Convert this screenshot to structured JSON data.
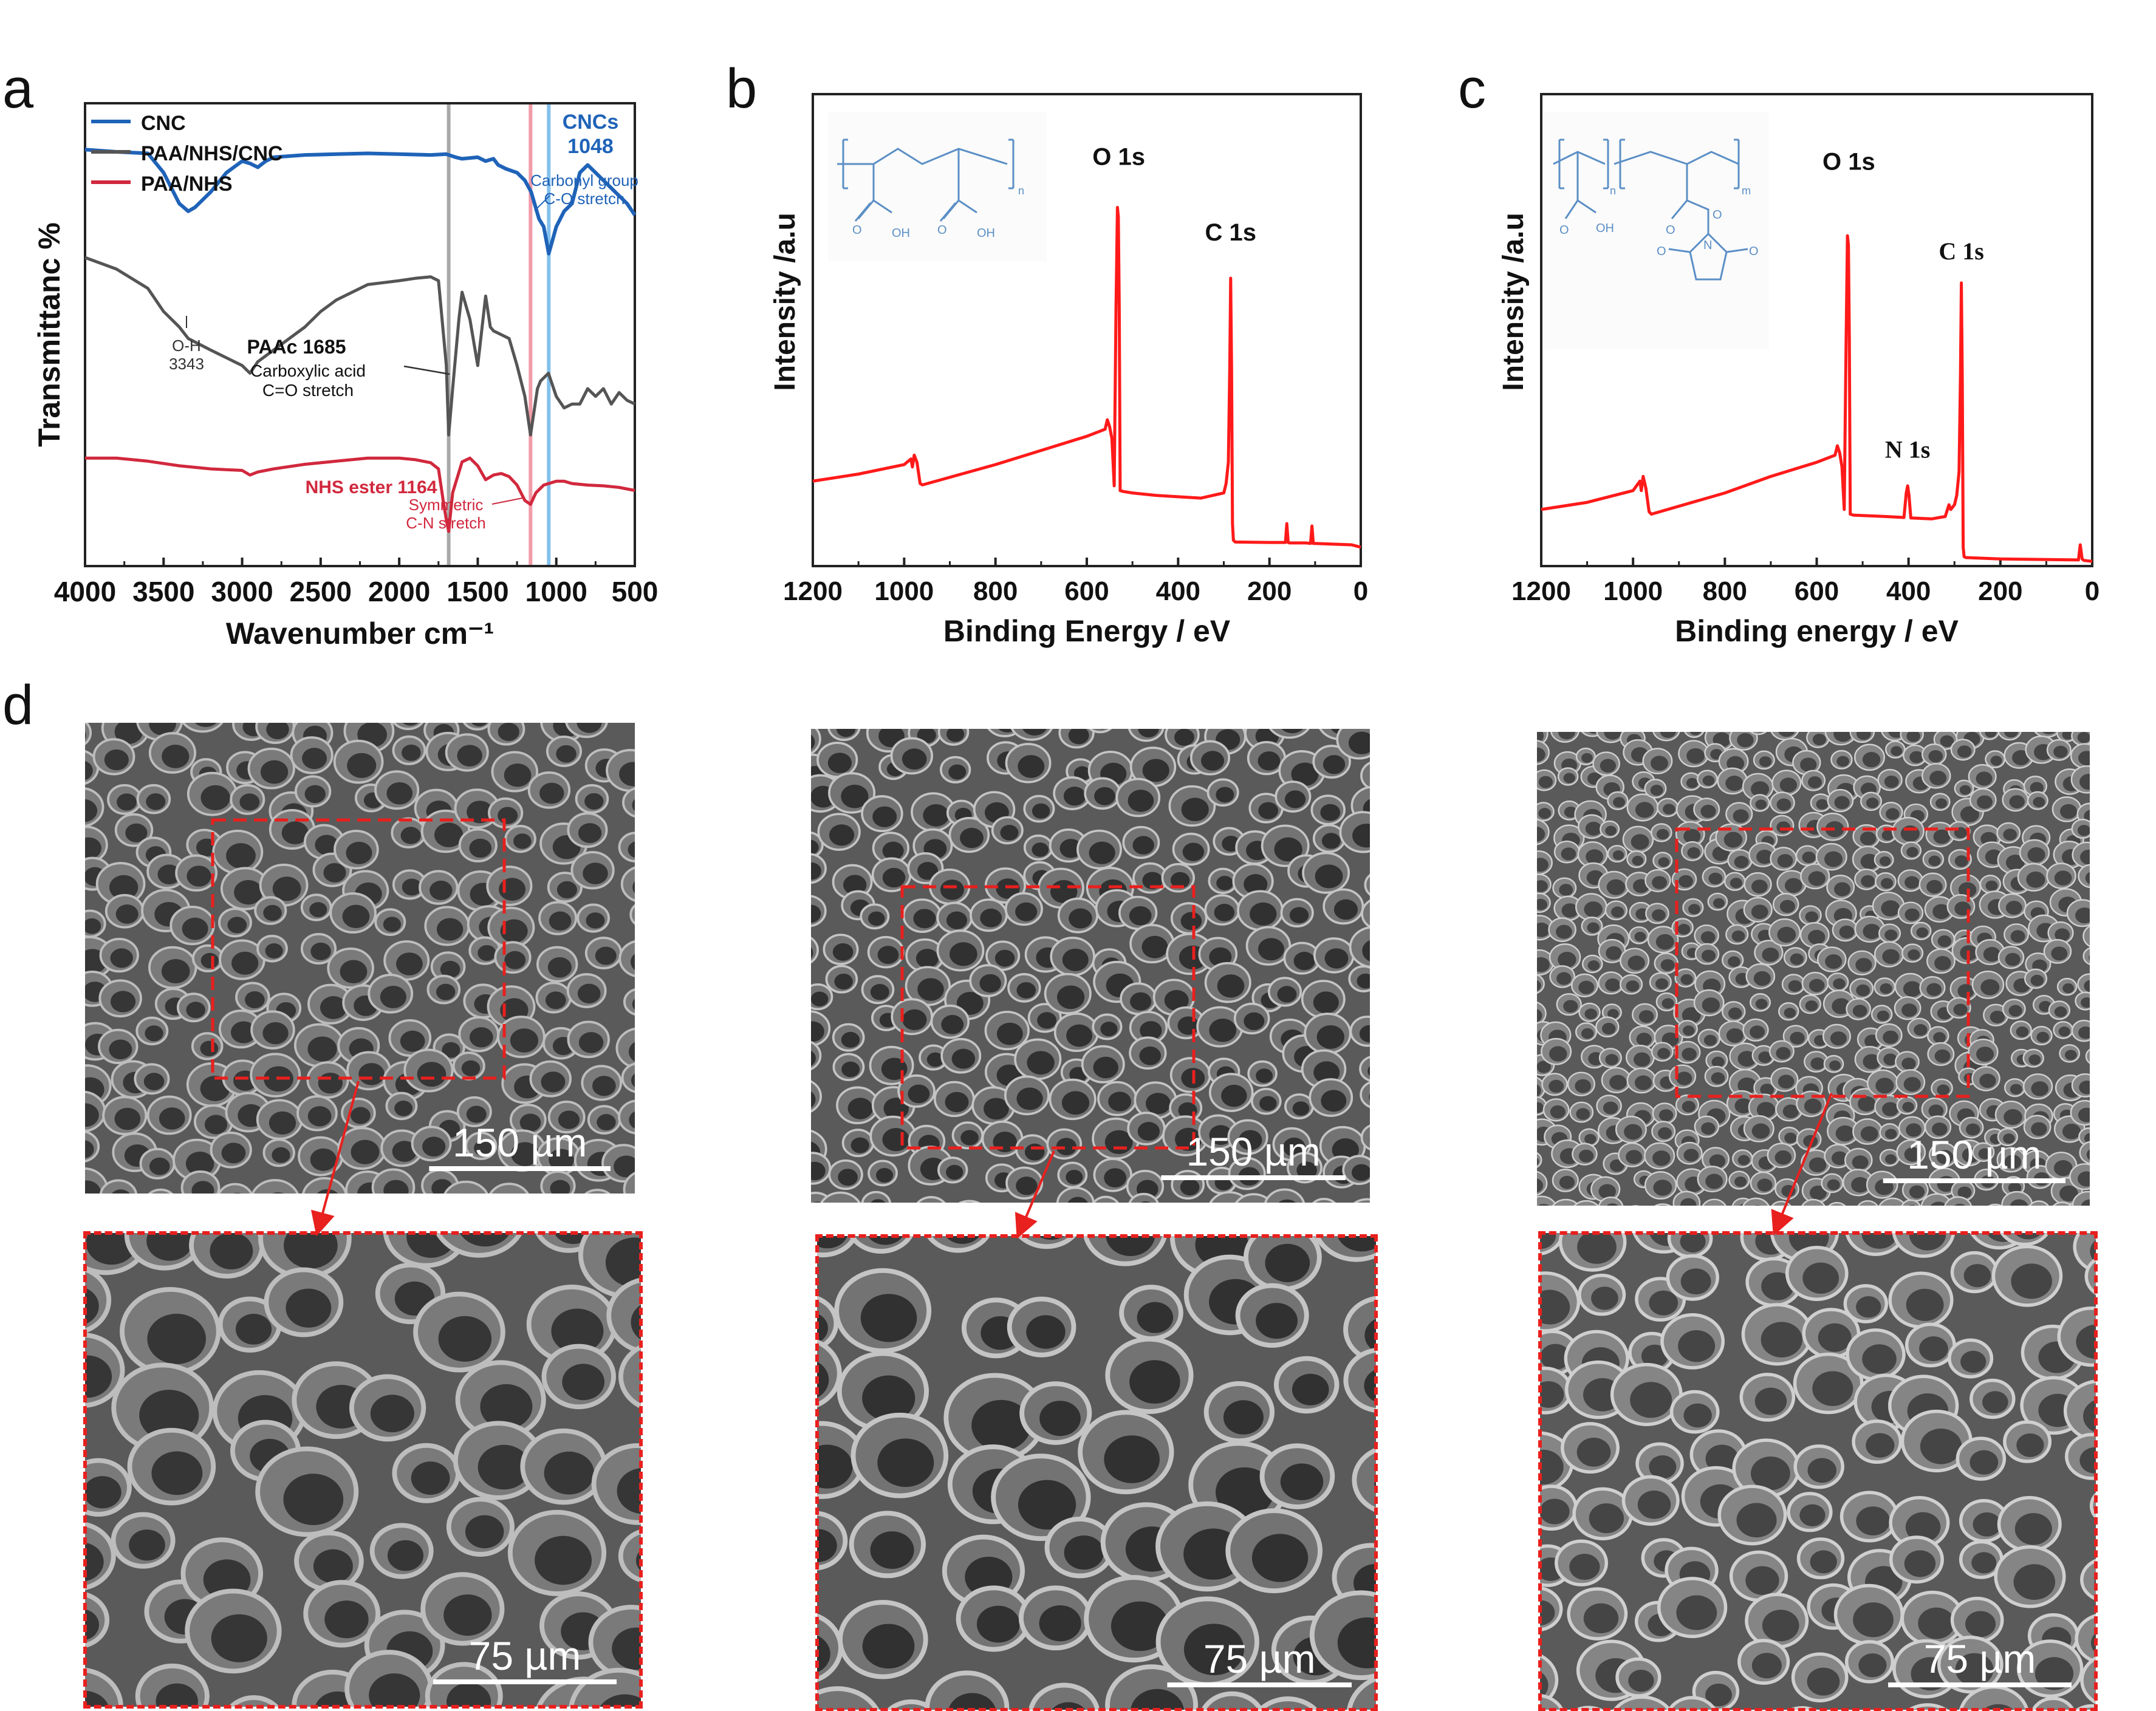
{
  "panels": {
    "a": "a",
    "b": "b",
    "c": "c",
    "d": "d"
  },
  "chart_data": [
    {
      "panel": "a",
      "type": "line",
      "xlabel": "Wavenumber cm⁻¹",
      "ylabel": "Transmittanc %",
      "xlim": [
        4000,
        500
      ],
      "x_ticks": [
        "4000",
        "3500",
        "3000",
        "2500",
        "2000",
        "1500",
        "1000",
        "500"
      ],
      "legend_position": "top-left",
      "series": [
        {
          "name": "CNC",
          "color": "#1f63b8",
          "x": [
            4000,
            3800,
            3600,
            3500,
            3450,
            3400,
            3343,
            3300,
            3200,
            3100,
            3000,
            2950,
            2900,
            2850,
            2800,
            2600,
            2400,
            2200,
            2000,
            1800,
            1700,
            1640,
            1600,
            1500,
            1450,
            1400,
            1370,
            1320,
            1250,
            1200,
            1160,
            1110,
            1080,
            1048,
            1000,
            950,
            900,
            850,
            800,
            750,
            700,
            650,
            600,
            550,
            500
          ],
          "y": [
            94,
            93.7,
            93.5,
            91,
            89,
            87,
            86,
            86.5,
            88.5,
            91,
            92.5,
            92.2,
            91.7,
            92.5,
            93,
            93.3,
            93.4,
            93.5,
            93.4,
            93.3,
            93.4,
            93,
            92.8,
            93,
            92.5,
            92.8,
            92,
            91.5,
            91,
            90,
            88.5,
            85,
            84,
            80.5,
            84,
            86,
            87,
            91,
            92,
            91,
            90,
            89,
            88,
            87,
            85.5
          ]
        },
        {
          "name": "PAA/NHS/CNC",
          "color": "#555555",
          "x": [
            4000,
            3800,
            3600,
            3500,
            3400,
            3343,
            3200,
            3000,
            2950,
            2900,
            2800,
            2600,
            2500,
            2400,
            2200,
            2000,
            1900,
            1800,
            1750,
            1700,
            1685,
            1660,
            1620,
            1600,
            1550,
            1500,
            1450,
            1420,
            1400,
            1350,
            1300,
            1250,
            1200,
            1164,
            1120,
            1100,
            1050,
            1000,
            950,
            900,
            850,
            800,
            750,
            700,
            650,
            600,
            550,
            500
          ],
          "y": [
            80,
            78.5,
            76,
            73,
            71,
            69.5,
            68,
            66,
            65,
            66.5,
            68,
            71,
            73,
            74.5,
            76.5,
            77,
            77.3,
            77.5,
            77,
            66,
            57,
            63,
            72,
            75.5,
            72,
            66,
            75,
            71,
            70.5,
            70,
            69.5,
            66,
            62,
            57,
            63,
            64,
            65,
            62,
            60.5,
            61,
            61,
            63,
            62,
            63,
            61,
            62.5,
            61.5,
            61
          ]
        },
        {
          "name": "PAA/NHS",
          "color": "#d1283d",
          "x": [
            4000,
            3800,
            3600,
            3400,
            3200,
            3000,
            2950,
            2900,
            2800,
            2600,
            2400,
            2200,
            2000,
            1900,
            1800,
            1750,
            1720,
            1700,
            1685,
            1660,
            1600,
            1550,
            1500,
            1450,
            1400,
            1350,
            1300,
            1250,
            1200,
            1164,
            1130,
            1080,
            1000,
            950,
            900,
            800,
            700,
            600,
            500
          ],
          "y": [
            54,
            54,
            53.6,
            53,
            52.6,
            52.4,
            51.8,
            52.2,
            52.6,
            53.2,
            53.6,
            54,
            54,
            53.8,
            53.4,
            52.6,
            48.5,
            46,
            44.5,
            49.5,
            53.5,
            54,
            53,
            51.2,
            51.8,
            52,
            51.6,
            50.5,
            48.5,
            48,
            49.5,
            50.5,
            51,
            51,
            50.7,
            50.5,
            50.4,
            50.2,
            49.8
          ]
        }
      ],
      "reference_lines": [
        {
          "x": 1685,
          "color": "#999999"
        },
        {
          "x": 1164,
          "color": "#f08a9a"
        },
        {
          "x": 1048,
          "color": "#6fb6ea"
        }
      ],
      "annotations": [
        {
          "lines": [
            "CNCs",
            "1048"
          ],
          "bold": true,
          "color": "#1f63b8"
        },
        {
          "lines": [
            "Carbonyl group",
            "C-O stretch"
          ],
          "color": "#1f63b8"
        },
        {
          "lines": [
            "O-H",
            "3343"
          ],
          "color": "#333333"
        },
        {
          "lines": [
            "PAAc 1685"
          ],
          "bold": true,
          "color": "#111111"
        },
        {
          "lines": [
            "Carboxylic acid",
            "C=O stretch"
          ],
          "color": "#111111"
        },
        {
          "lines": [
            "NHS ester 1164"
          ],
          "bold": true,
          "color": "#d1283d"
        },
        {
          "lines": [
            "Symmetric",
            "C-N stretch"
          ],
          "color": "#d1283d"
        }
      ]
    },
    {
      "panel": "b",
      "type": "line",
      "xlabel": "Binding Energy / eV",
      "ylabel": "Intensity /a.u",
      "xlim": [
        1200,
        0
      ],
      "ylim": [
        0,
        100
      ],
      "x_ticks": [
        "1200",
        "1000",
        "800",
        "600",
        "400",
        "200",
        "0"
      ],
      "series": [
        {
          "name": "",
          "color": "#ff1a1a",
          "x": [
            1200,
            1100,
            1000,
            985,
            982,
            978,
            972,
            965,
            960,
            800,
            700,
            600,
            560,
            555,
            550,
            545,
            540,
            536,
            533,
            531,
            529,
            527,
            520,
            500,
            450,
            350,
            300,
            295,
            290,
            287,
            285,
            283,
            281,
            279,
            275,
            200,
            165,
            162,
            159,
            156,
            120,
            110,
            107,
            104,
            100,
            20,
            0
          ],
          "y": [
            18,
            19.5,
            21.5,
            22.7,
            21,
            23.5,
            22,
            17.5,
            17.2,
            21.5,
            24.5,
            27.5,
            29,
            31,
            29.5,
            27,
            17,
            55,
            76,
            74,
            55,
            16,
            15.8,
            15.5,
            15,
            14.4,
            15.5,
            17.5,
            22,
            42,
            61,
            42,
            9,
            5.5,
            5.1,
            5,
            5,
            9,
            5,
            4.9,
            4.9,
            4.8,
            8.5,
            4.8,
            4.8,
            4.5,
            4
          ]
        }
      ],
      "annotations": [
        {
          "text": "O 1s"
        },
        {
          "text": "C 1s"
        }
      ],
      "inset": "poly(acrylic acid) repeat unit structure"
    },
    {
      "panel": "c",
      "type": "line",
      "xlabel": "Binding energy / eV",
      "ylabel": "Intensity /a.u",
      "xlim": [
        1200,
        0
      ],
      "ylim": [
        0,
        100
      ],
      "x_ticks": [
        "1200",
        "1000",
        "800",
        "600",
        "400",
        "200",
        "0"
      ],
      "series": [
        {
          "name": "",
          "color": "#ff1a1a",
          "x": [
            1200,
            1100,
            1000,
            985,
            982,
            978,
            972,
            965,
            960,
            800,
            700,
            600,
            560,
            555,
            550,
            545,
            540,
            536,
            533,
            531,
            529,
            527,
            520,
            450,
            410,
            405,
            402,
            399,
            395,
            350,
            320,
            312,
            308,
            300,
            295,
            290,
            287,
            285,
            283,
            281,
            279,
            275,
            200,
            30,
            26,
            22,
            18,
            0
          ],
          "y": [
            12,
            13.5,
            16,
            18,
            16,
            19,
            16.5,
            11.5,
            11,
            15.5,
            19,
            22,
            23.5,
            25.5,
            24,
            21,
            12,
            48,
            70,
            68,
            48,
            11,
            10.8,
            10.5,
            10.3,
            15.5,
            17,
            15,
            10.2,
            10,
            10.5,
            13,
            12,
            13,
            15,
            20,
            40,
            60,
            40,
            4,
            2,
            1.8,
            1.5,
            1.3,
            4.5,
            1.5,
            1.2,
            1
          ]
        }
      ],
      "annotations": [
        {
          "text": "O 1s"
        },
        {
          "text": "C 1s"
        },
        {
          "text": "N 1s"
        }
      ],
      "inset": "poly(acrylic acid)-co-(acrylic acid NHS ester) structure"
    }
  ],
  "sem": {
    "scale_top": "150 µm",
    "scale_bottom": "75 µm"
  }
}
